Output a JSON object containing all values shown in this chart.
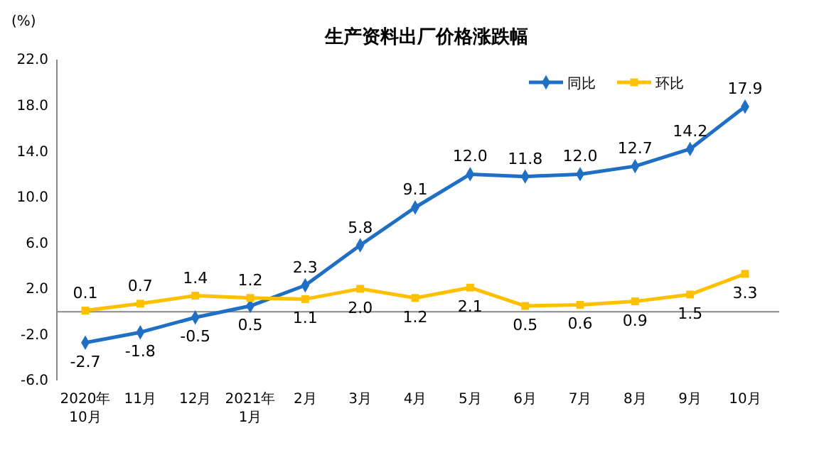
{
  "chart_data": {
    "type": "line",
    "title": "生产资料出厂价格涨跌幅",
    "ylabel": "(%)",
    "categories": [
      "2020年\n10月",
      "11月",
      "12月",
      "2021年\n1月",
      "2月",
      "3月",
      "4月",
      "5月",
      "6月",
      "7月",
      "8月",
      "9月",
      "10月"
    ],
    "series": [
      {
        "name": "同比",
        "color": "#1f6fc5",
        "marker": "diamond",
        "values": [
          -2.7,
          -1.8,
          -0.5,
          0.5,
          2.3,
          5.8,
          9.1,
          12.0,
          11.8,
          12.0,
          12.7,
          14.2,
          17.9
        ],
        "value_labels": [
          "-2.7",
          "-1.8",
          "-0.5",
          "0.5",
          "2.3",
          "5.8",
          "9.1",
          "12.0",
          "11.8",
          "12.0",
          "12.7",
          "14.2",
          "17.9"
        ]
      },
      {
        "name": "环比",
        "color": "#ffc000",
        "marker": "square",
        "values": [
          0.1,
          0.7,
          1.4,
          1.2,
          1.1,
          2.0,
          1.2,
          2.1,
          0.5,
          0.6,
          0.9,
          1.5,
          3.3
        ],
        "value_labels": [
          "0.1",
          "0.7",
          "1.4",
          "1.2",
          "1.1",
          "2.0",
          "1.2",
          "2.1",
          "0.5",
          "0.6",
          "0.9",
          "1.5",
          "3.3"
        ]
      }
    ],
    "ylim": [
      -6,
      22
    ],
    "yticks": [
      {
        "value": -6,
        "label": "-6.0"
      },
      {
        "value": -2,
        "label": "-2.0"
      },
      {
        "value": 2,
        "label": "2.0"
      },
      {
        "value": 6,
        "label": "6.0"
      },
      {
        "value": 10,
        "label": "10.0"
      },
      {
        "value": 14,
        "label": "14.0"
      },
      {
        "value": 18,
        "label": "18.0"
      },
      {
        "value": 22,
        "label": "22.0"
      }
    ],
    "legend": "top right",
    "grid": false,
    "line_style": "solid"
  }
}
